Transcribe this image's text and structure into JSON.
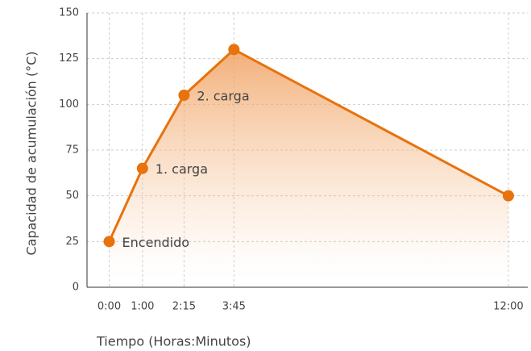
{
  "chart_data": {
    "type": "line",
    "x_label": "Tiempo (Horas:Minutos)",
    "y_label": "Capacidad de acumulación (°C)",
    "x": [
      0,
      60,
      135,
      225,
      720
    ],
    "series": [
      {
        "name": "Capacidad",
        "color": "#e8720c",
        "values": [
          25,
          65,
          105,
          130,
          50
        ]
      }
    ],
    "annotations": [
      {
        "text": "Encendido",
        "point": 0
      },
      {
        "text": "1. carga",
        "point": 1
      },
      {
        "text": "2. carga",
        "point": 2
      }
    ],
    "xlim": [
      -40,
      755
    ],
    "xticks": [
      {
        "value": 0,
        "label": "0:00"
      },
      {
        "value": 60,
        "label": "1:00"
      },
      {
        "value": 135,
        "label": "2:15"
      },
      {
        "value": 225,
        "label": "3:45"
      },
      {
        "value": 720,
        "label": "12:00"
      }
    ],
    "ylim": [
      0,
      150
    ],
    "yticks": [
      0,
      25,
      50,
      75,
      100,
      125,
      150
    ],
    "grid": true
  }
}
